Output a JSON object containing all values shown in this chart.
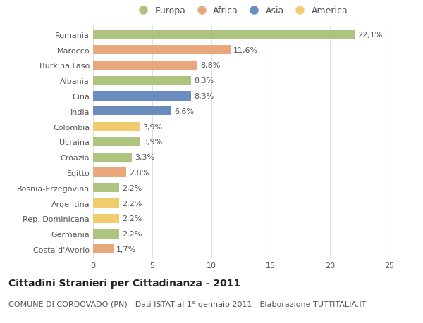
{
  "countries": [
    "Romania",
    "Marocco",
    "Burkina Faso",
    "Albania",
    "Cina",
    "India",
    "Colombia",
    "Ucraina",
    "Croazia",
    "Egitto",
    "Bosnia-Erzegovina",
    "Argentina",
    "Rep. Dominicana",
    "Germania",
    "Costa d'Avorio"
  ],
  "values": [
    22.1,
    11.6,
    8.8,
    8.3,
    8.3,
    6.6,
    3.9,
    3.9,
    3.3,
    2.8,
    2.2,
    2.2,
    2.2,
    2.2,
    1.7
  ],
  "labels": [
    "22,1%",
    "11,6%",
    "8,8%",
    "8,3%",
    "8,3%",
    "6,6%",
    "3,9%",
    "3,9%",
    "3,3%",
    "2,8%",
    "2,2%",
    "2,2%",
    "2,2%",
    "2,2%",
    "1,7%"
  ],
  "continents": [
    "Europa",
    "Africa",
    "Africa",
    "Europa",
    "Asia",
    "Asia",
    "America",
    "Europa",
    "Europa",
    "Africa",
    "Europa",
    "America",
    "America",
    "Europa",
    "Africa"
  ],
  "colors": {
    "Europa": "#adc47e",
    "Africa": "#e8a87c",
    "Asia": "#6b8cbf",
    "America": "#f0cc6e"
  },
  "legend_order": [
    "Europa",
    "Africa",
    "Asia",
    "America"
  ],
  "xlim": [
    0,
    25
  ],
  "xticks": [
    0,
    5,
    10,
    15,
    20,
    25
  ],
  "title": "Cittadini Stranieri per Cittadinanza - 2011",
  "subtitle": "COMUNE DI CORDOVADO (PN) - Dati ISTAT al 1° gennaio 2011 - Elaborazione TUTTITALIA.IT",
  "background_color": "#ffffff",
  "grid_color": "#e0e0e0",
  "bar_height": 0.6,
  "title_fontsize": 10,
  "subtitle_fontsize": 8,
  "label_fontsize": 8,
  "tick_fontsize": 8,
  "legend_fontsize": 9
}
